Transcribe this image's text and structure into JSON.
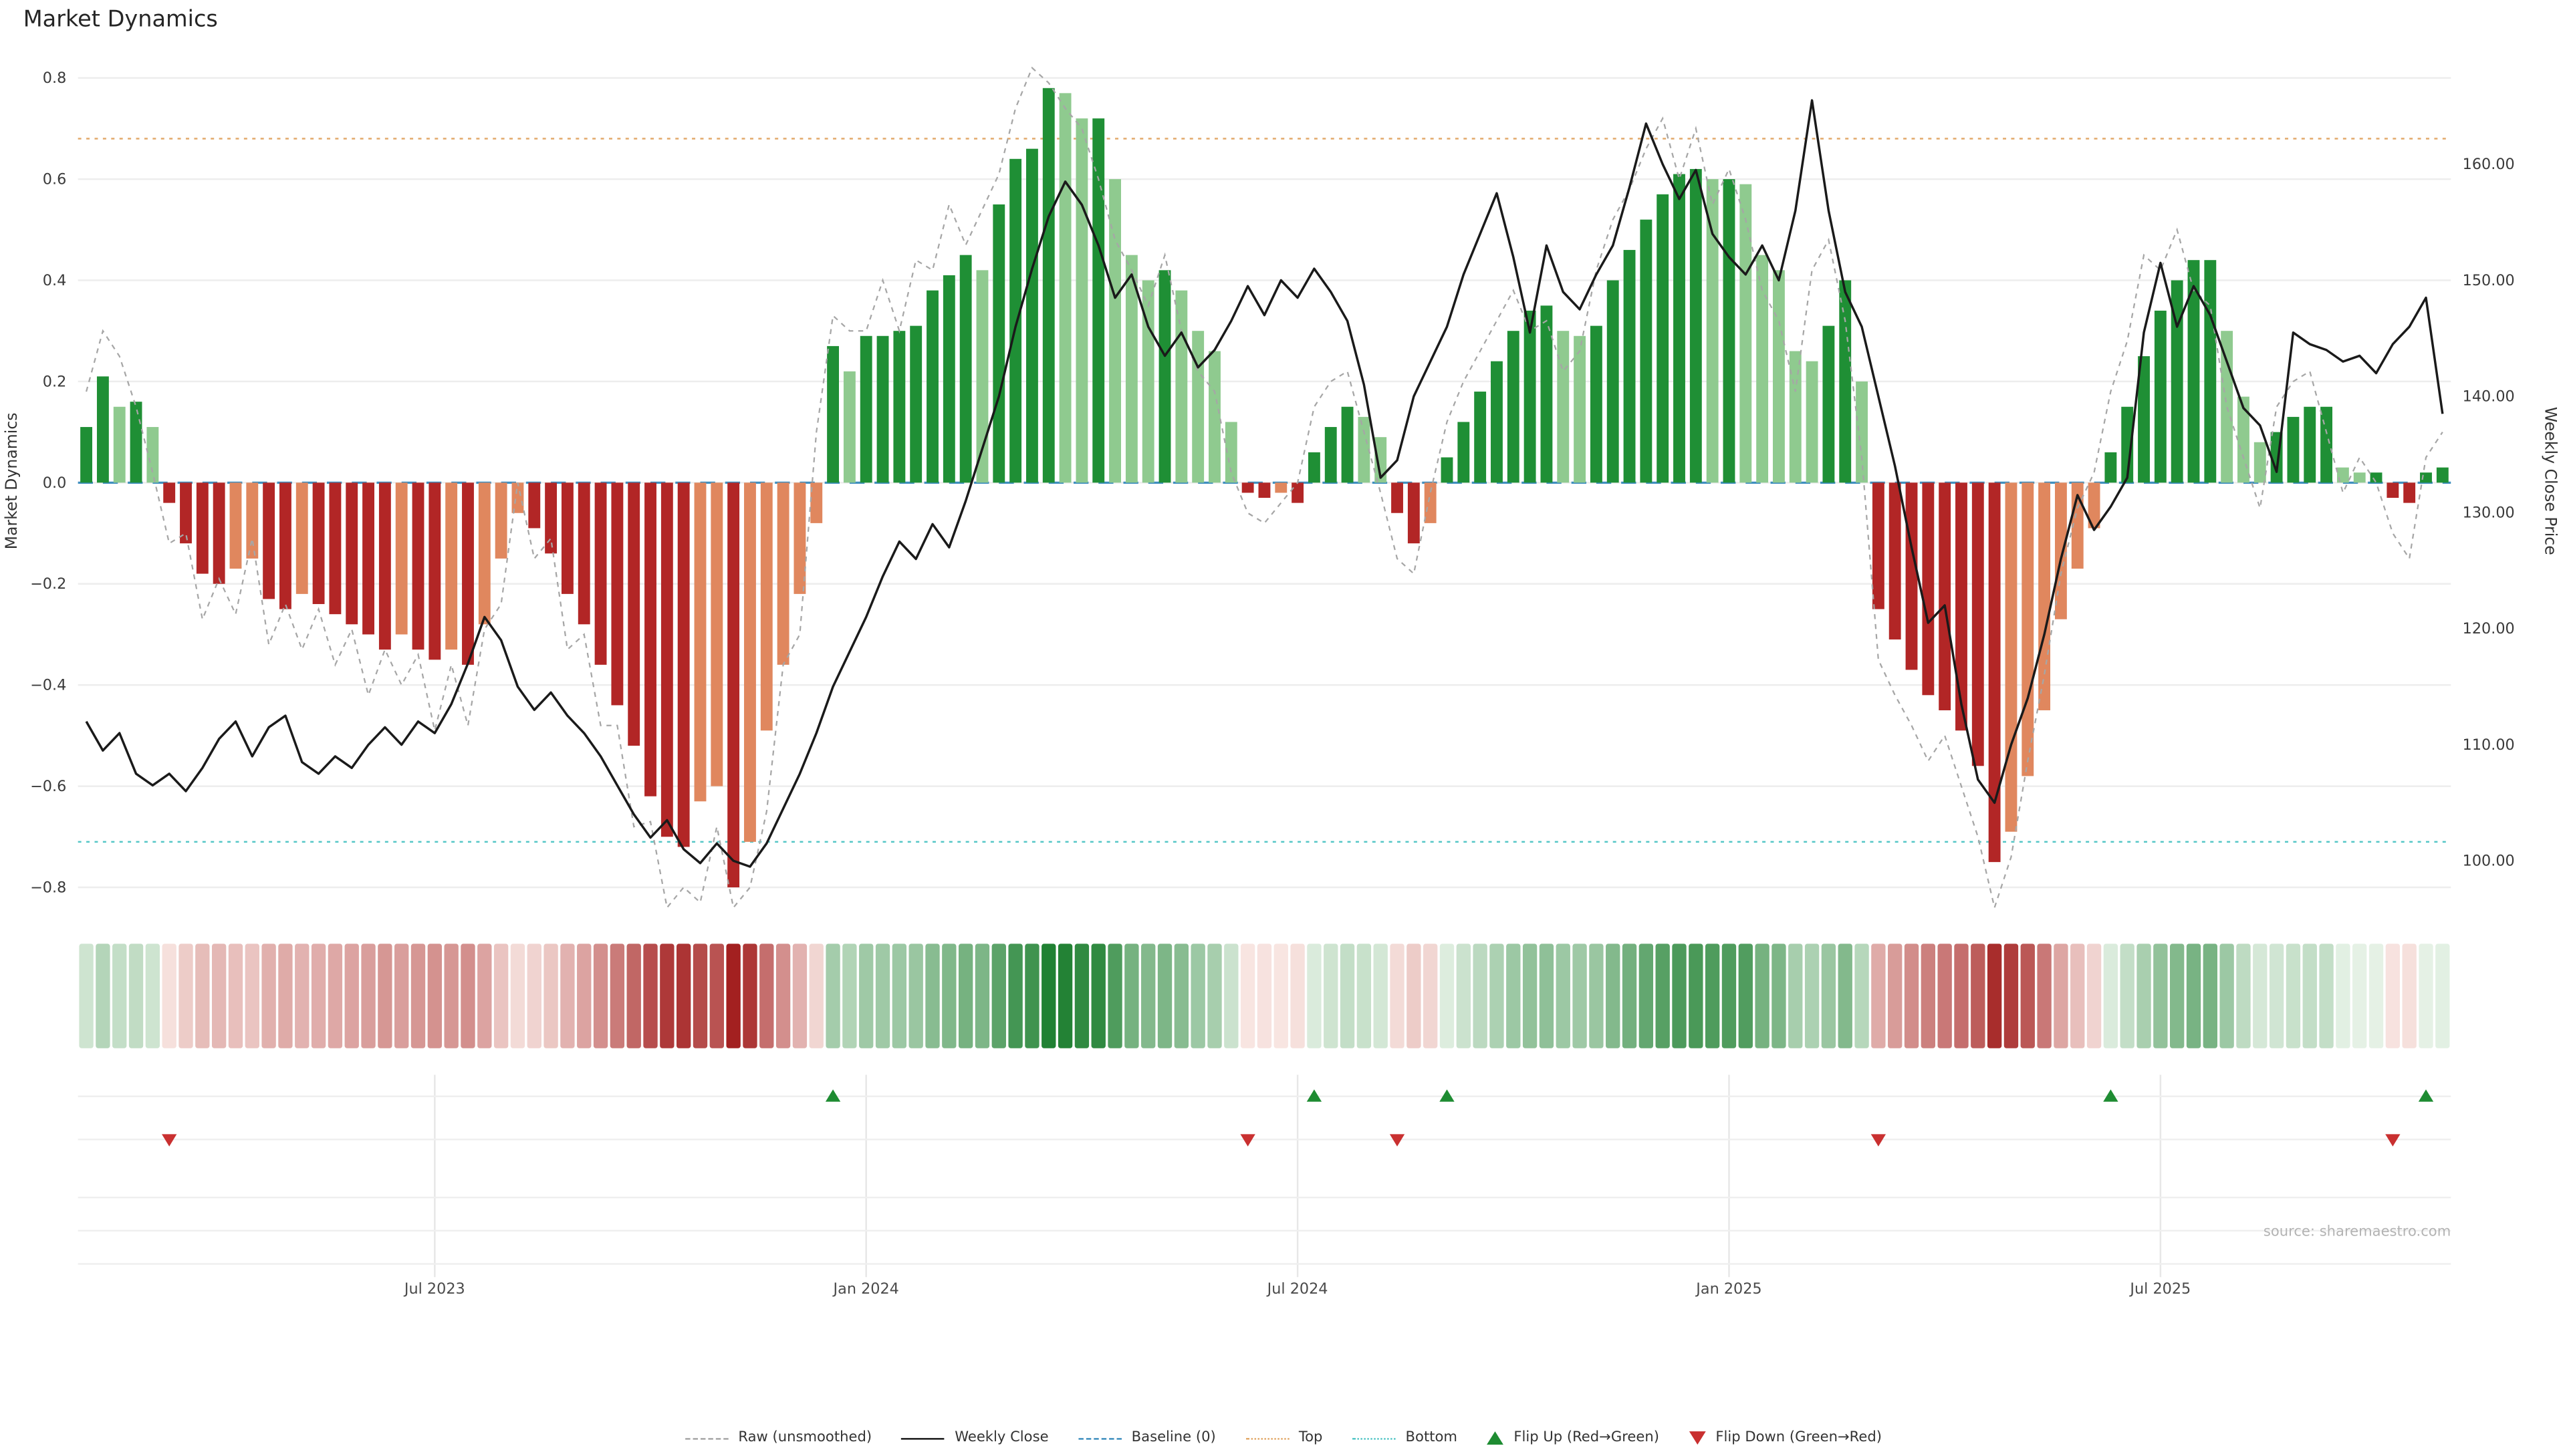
{
  "title": "Market Dynamics",
  "source": "source: sharemaestro.com",
  "legend": {
    "items": [
      {
        "id": "raw",
        "label": "Raw (unsmoothed)"
      },
      {
        "id": "close",
        "label": "Weekly Close"
      },
      {
        "id": "baseline",
        "label": "Baseline (0)"
      },
      {
        "id": "top",
        "label": "Top"
      },
      {
        "id": "bottom",
        "label": "Bottom"
      },
      {
        "id": "flip_up",
        "label": "Flip Up (Red→Green)"
      },
      {
        "id": "flip_down",
        "label": "Flip Down (Green→Red)"
      }
    ]
  },
  "colors": {
    "bar_pos_strong": "#1f8f35",
    "bar_pos_weak": "#8fca8f",
    "bar_neg_strong": "#b22626",
    "bar_neg_weak": "#e0875e",
    "close_line": "#1a1a1a",
    "raw_line": "#a6a6a6",
    "baseline": "#3f8fbf",
    "top_line": "#e2a96a",
    "bottom_line": "#55c6c6",
    "flip_up": "#1e8c32",
    "flip_down": "#c93030",
    "grid": "#ededed",
    "heat_pos_max": "#1b7e2e",
    "heat_pos_min": "#eaf4ea",
    "heat_neg_max": "#a32020",
    "heat_neg_min": "#faeae6"
  },
  "chart_data": {
    "type": "bar",
    "subtype": "weekly oscillator bars + raw dashed line (left axis) + weekly close line (right axis) + heatmap strip + flip markers",
    "grid": "horizontal",
    "x": {
      "unit": "week_index",
      "count": 143,
      "ticks": [
        {
          "index": 21,
          "label": "Jul 2023"
        },
        {
          "index": 47,
          "label": "Jan 2024"
        },
        {
          "index": 73,
          "label": "Jul 2024"
        },
        {
          "index": 99,
          "label": "Jan 2025"
        },
        {
          "index": 125,
          "label": "Jul 2025"
        }
      ]
    },
    "left_axis": {
      "label": "Market Dynamics",
      "ticks": [
        0.8,
        0.6,
        0.4,
        0.2,
        0.0,
        -0.2,
        -0.4,
        -0.6,
        -0.8
      ],
      "range": [
        -0.9,
        0.85
      ]
    },
    "right_axis": {
      "label": "Weekly Close Price",
      "ticks": [
        160,
        150,
        140,
        130,
        120,
        110,
        100
      ],
      "range": [
        97.6,
        168.6
      ]
    },
    "reference_lines": [
      {
        "name": "Baseline (0)",
        "axis": "left",
        "value": 0,
        "style": "dashed"
      },
      {
        "name": "Top",
        "axis": "left",
        "value": 0.68,
        "style": "dotted"
      },
      {
        "name": "Bottom",
        "axis": "left",
        "value": -0.71,
        "style": "dotted"
      }
    ],
    "series": [
      {
        "name": "Market Dynamics (smoothed bars)",
        "type": "bar",
        "axis": "left",
        "values": [
          0.11,
          0.21,
          0.15,
          0.16,
          0.11,
          -0.04,
          -0.12,
          -0.18,
          -0.2,
          -0.17,
          -0.15,
          -0.23,
          -0.25,
          -0.22,
          -0.24,
          -0.26,
          -0.28,
          -0.3,
          -0.33,
          -0.3,
          -0.33,
          -0.35,
          -0.33,
          -0.36,
          -0.28,
          -0.15,
          -0.06,
          -0.09,
          -0.14,
          -0.22,
          -0.28,
          -0.36,
          -0.44,
          -0.52,
          -0.62,
          -0.7,
          -0.72,
          -0.63,
          -0.6,
          -0.8,
          -0.71,
          -0.49,
          -0.36,
          -0.22,
          -0.08,
          0.27,
          0.22,
          0.29,
          0.29,
          0.3,
          0.31,
          0.38,
          0.41,
          0.45,
          0.42,
          0.55,
          0.64,
          0.66,
          0.78,
          0.77,
          0.72,
          0.72,
          0.6,
          0.45,
          0.4,
          0.42,
          0.38,
          0.3,
          0.26,
          0.12,
          -0.02,
          -0.03,
          -0.02,
          -0.04,
          0.06,
          0.11,
          0.15,
          0.13,
          0.09,
          -0.06,
          -0.12,
          -0.08,
          0.05,
          0.12,
          0.18,
          0.24,
          0.3,
          0.34,
          0.35,
          0.3,
          0.29,
          0.31,
          0.4,
          0.46,
          0.52,
          0.57,
          0.61,
          0.62,
          0.6,
          0.6,
          0.59,
          0.45,
          0.42,
          0.26,
          0.24,
          0.31,
          0.4,
          0.2,
          -0.25,
          -0.31,
          -0.37,
          -0.42,
          -0.45,
          -0.49,
          -0.56,
          -0.75,
          -0.69,
          -0.58,
          -0.45,
          -0.27,
          -0.17,
          -0.09,
          0.06,
          0.15,
          0.25,
          0.34,
          0.4,
          0.44,
          0.44,
          0.3,
          0.17,
          0.08,
          0.1,
          0.13,
          0.15,
          0.15,
          0.03,
          0.02,
          0.02,
          -0.03,
          -0.04,
          0.02,
          0.03
        ]
      },
      {
        "name": "Raw (unsmoothed)",
        "type": "line",
        "axis": "left",
        "style": "dashed",
        "values": [
          0.18,
          0.3,
          0.25,
          0.15,
          0.02,
          -0.12,
          -0.1,
          -0.27,
          -0.19,
          -0.26,
          -0.11,
          -0.32,
          -0.24,
          -0.33,
          -0.25,
          -0.36,
          -0.29,
          -0.42,
          -0.33,
          -0.4,
          -0.34,
          -0.49,
          -0.36,
          -0.48,
          -0.29,
          -0.24,
          0.0,
          -0.15,
          -0.11,
          -0.33,
          -0.3,
          -0.48,
          -0.48,
          -0.68,
          -0.67,
          -0.84,
          -0.8,
          -0.83,
          -0.68,
          -0.84,
          -0.8,
          -0.65,
          -0.36,
          -0.3,
          0.1,
          0.33,
          0.3,
          0.3,
          0.4,
          0.3,
          0.44,
          0.42,
          0.55,
          0.47,
          0.54,
          0.61,
          0.74,
          0.82,
          0.79,
          0.74,
          0.7,
          0.6,
          0.48,
          0.42,
          0.35,
          0.45,
          0.3,
          0.22,
          0.18,
          0.02,
          -0.06,
          -0.08,
          -0.04,
          0.0,
          0.15,
          0.2,
          0.22,
          0.1,
          -0.02,
          -0.15,
          -0.18,
          -0.02,
          0.12,
          0.2,
          0.26,
          0.32,
          0.38,
          0.3,
          0.32,
          0.22,
          0.26,
          0.42,
          0.52,
          0.58,
          0.66,
          0.72,
          0.6,
          0.7,
          0.55,
          0.62,
          0.52,
          0.38,
          0.32,
          0.18,
          0.42,
          0.48,
          0.32,
          0.05,
          -0.35,
          -0.42,
          -0.48,
          -0.55,
          -0.5,
          -0.6,
          -0.7,
          -0.84,
          -0.74,
          -0.55,
          -0.38,
          -0.18,
          -0.05,
          0.02,
          0.18,
          0.28,
          0.45,
          0.42,
          0.5,
          0.38,
          0.35,
          0.15,
          0.05,
          -0.05,
          0.15,
          0.2,
          0.22,
          0.1,
          -0.02,
          0.05,
          0.0,
          -0.1,
          -0.15,
          0.05,
          0.1
        ]
      },
      {
        "name": "Weekly Close",
        "type": "line",
        "axis": "right",
        "values": [
          112.0,
          109.5,
          111.0,
          107.5,
          106.5,
          107.5,
          106.0,
          108.0,
          110.5,
          112.0,
          109.0,
          111.5,
          112.5,
          108.5,
          107.5,
          109.0,
          108.0,
          110.0,
          111.5,
          110.0,
          112.0,
          111.0,
          113.5,
          117.0,
          121.0,
          119.0,
          115.0,
          113.0,
          114.5,
          112.5,
          111.0,
          109.0,
          106.5,
          104.0,
          102.0,
          103.5,
          101.0,
          99.8,
          101.5,
          100.0,
          99.5,
          101.5,
          104.5,
          107.5,
          111.0,
          115.0,
          118.0,
          121.0,
          124.5,
          127.5,
          126.0,
          129.0,
          127.0,
          131.0,
          135.5,
          140.0,
          146.0,
          151.0,
          155.5,
          158.5,
          156.5,
          153.0,
          148.5,
          150.5,
          146.0,
          143.5,
          145.5,
          142.5,
          144.0,
          146.5,
          149.5,
          147.0,
          150.0,
          148.5,
          151.0,
          149.0,
          146.5,
          141.0,
          133.0,
          134.5,
          140.0,
          143.0,
          146.0,
          150.5,
          154.0,
          157.5,
          152.0,
          145.5,
          153.0,
          149.0,
          147.5,
          150.5,
          153.0,
          158.0,
          163.5,
          160.0,
          157.0,
          159.5,
          154.0,
          152.0,
          150.5,
          153.0,
          150.0,
          156.0,
          165.5,
          156.0,
          149.0,
          146.0,
          140.0,
          134.0,
          127.0,
          120.5,
          122.0,
          113.5,
          107.0,
          105.0,
          110.0,
          114.0,
          119.5,
          126.0,
          131.5,
          128.5,
          130.5,
          133.0,
          145.5,
          151.5,
          146.0,
          149.5,
          147.0,
          143.0,
          139.0,
          137.5,
          133.5,
          145.5,
          144.5,
          144.0,
          143.0,
          143.5,
          142.0,
          144.5,
          146.0,
          148.5,
          138.5
        ]
      }
    ],
    "flip_markers": {
      "up_week_indexes": [
        45,
        74,
        82,
        122,
        141
      ],
      "down_week_indexes": [
        5,
        70,
        79,
        108,
        139
      ]
    },
    "heatmap_strip": "color-coded copy of bar values (red = negative, green = positive, saturation proportional to |value|)"
  }
}
